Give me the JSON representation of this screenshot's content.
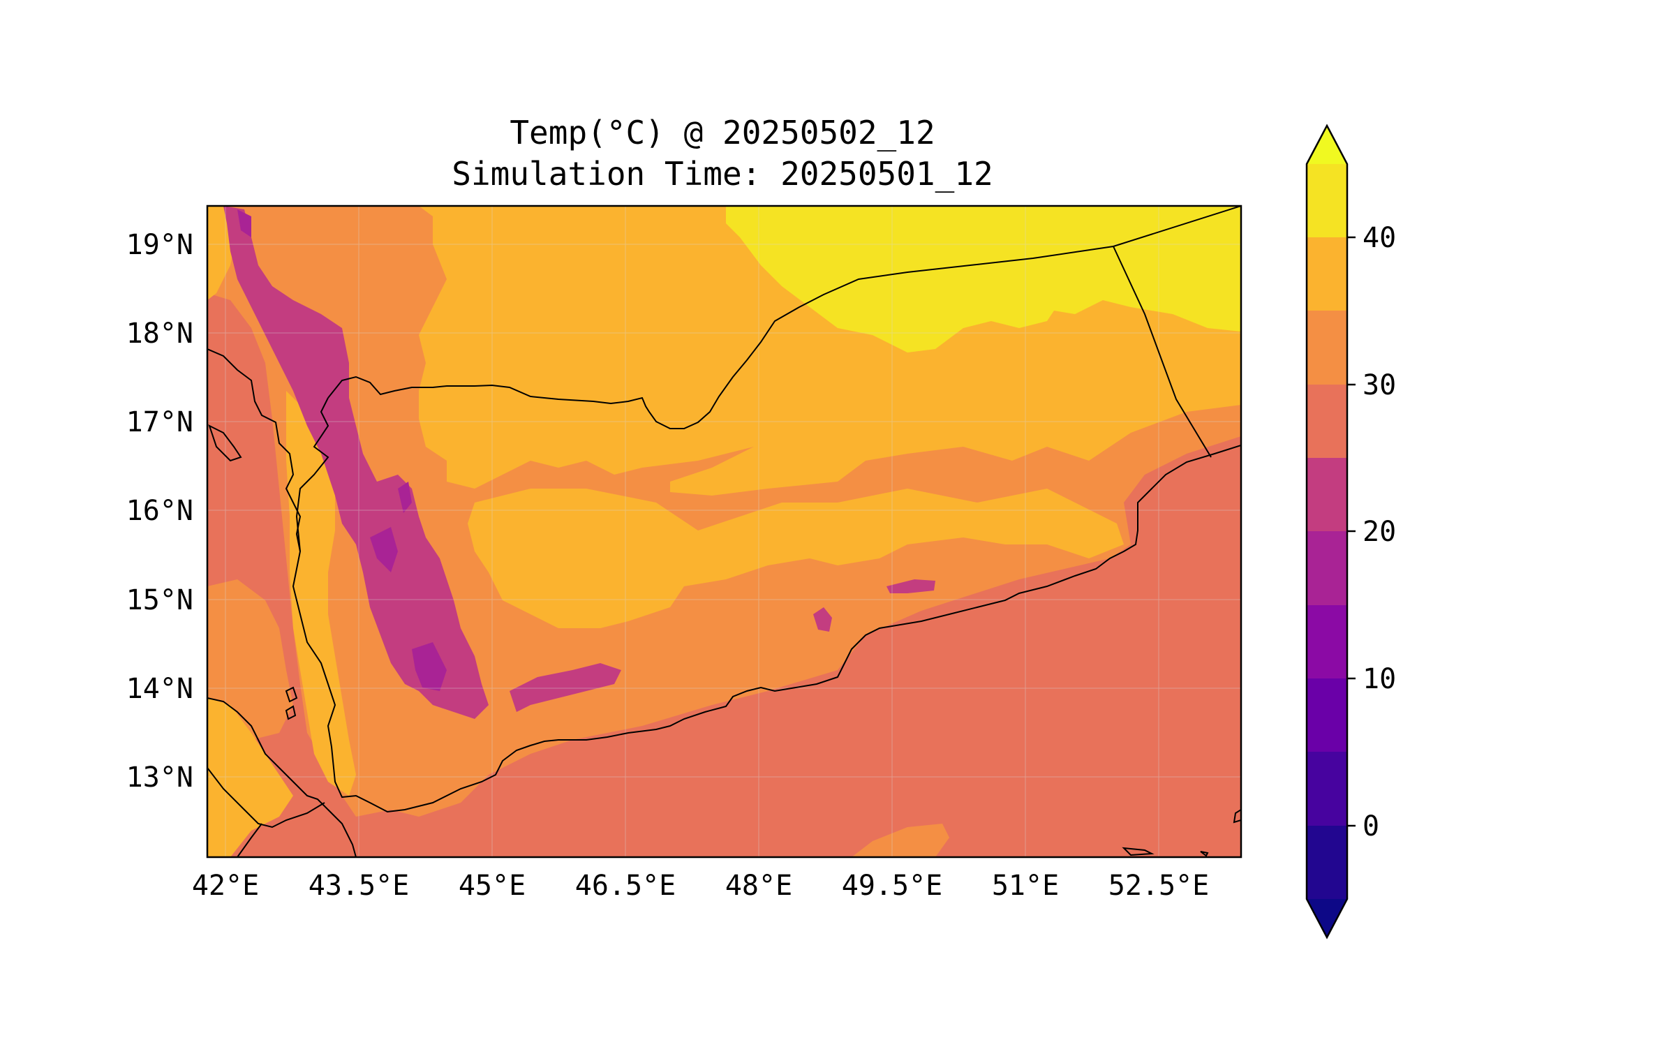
{
  "title": {
    "line1": "Temp(°C) @ 20250502_12",
    "line2": "Simulation Time: 20250501_12"
  },
  "map": {
    "lon_range": [
      41.85,
      53.6
    ],
    "lat_range": [
      12.1,
      19.5
    ],
    "lon_ticks": [
      "42°E",
      "43.5°E",
      "45°E",
      "46.5°E",
      "48°E",
      "49.5°E",
      "51°E",
      "52.5°E"
    ],
    "lat_ticks": [
      "19°N",
      "18°N",
      "17°N",
      "16°N",
      "15°N",
      "14°N",
      "13°N"
    ],
    "gridlines": true,
    "colormap": "plasma",
    "features": [
      "coastlines",
      "country borders"
    ]
  },
  "colorbar": {
    "ticks": [
      "40",
      "30",
      "20",
      "10",
      "0"
    ],
    "levels": [
      -5,
      0,
      5,
      10,
      15,
      20,
      25,
      30,
      35,
      40,
      45
    ],
    "extend": "both",
    "colors": {
      "under": "#0d0887",
      "-5_0": "#220690",
      "0_5": "#47039f",
      "5_10": "#6a00a8",
      "10_15": "#8b0aa5",
      "15_20": "#a92395",
      "20_25": "#c33d80",
      "25_30": "#e8725a",
      "30_35": "#f48f44",
      "35_40": "#fbb32f",
      "40_45": "#f5e323",
      "over": "#f0f921"
    }
  }
}
